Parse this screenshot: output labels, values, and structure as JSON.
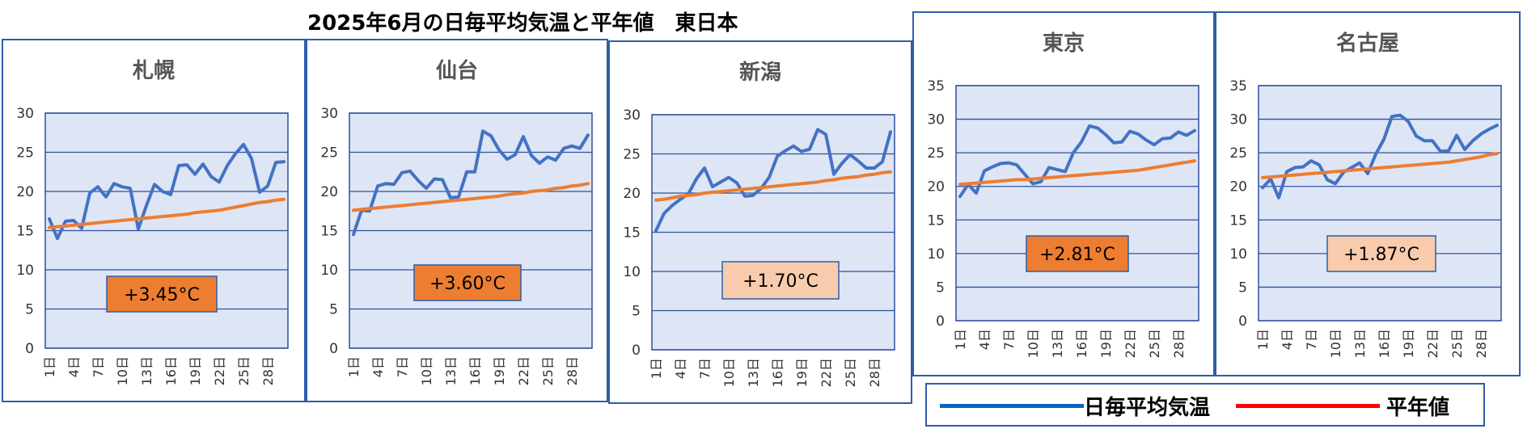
{
  "title": "2025年6月の日毎平均気温と平年値　東日本",
  "colors": {
    "daily": "#4472C4",
    "normal": "#ED7D31",
    "plot_bg": "#DEE6F5",
    "grid": "#2F4F9F",
    "border": "#2F5DAA",
    "legend_daily": "#0B63C4",
    "legend_normal": "#FF0000",
    "badge_strong": "#ED7D31",
    "badge_light": "#F8CBAD"
  },
  "legend": {
    "daily_label": "日毎平均気温",
    "normal_label": "平年値"
  },
  "chart_data": [
    {
      "type": "line",
      "title": "札幌",
      "xlabel": "",
      "ylabel": "",
      "x": [
        "1日",
        "2日",
        "3日",
        "4日",
        "5日",
        "6日",
        "7日",
        "8日",
        "9日",
        "10日",
        "11日",
        "12日",
        "13日",
        "14日",
        "15日",
        "16日",
        "17日",
        "18日",
        "19日",
        "20日",
        "21日",
        "22日",
        "23日",
        "24日",
        "25日",
        "26日",
        "27日",
        "28日",
        "29日",
        "30日"
      ],
      "xticks": [
        "1日",
        "4日",
        "7日",
        "10日",
        "13日",
        "16日",
        "19日",
        "22日",
        "25日",
        "28日"
      ],
      "ylim": [
        0,
        30
      ],
      "yticks": [
        0,
        5,
        10,
        15,
        20,
        25,
        30
      ],
      "series": [
        {
          "values": [
            16.5,
            14.0,
            16.2,
            16.3,
            15.3,
            19.8,
            20.6,
            19.3,
            21.0,
            20.6,
            20.4,
            15.2,
            18.2,
            20.9,
            20.0,
            19.6,
            23.3,
            23.4,
            22.2,
            23.5,
            21.9,
            21.2,
            23.3,
            24.8,
            26.0,
            24.2,
            19.9,
            20.7,
            23.7,
            23.8
          ]
        },
        {
          "values": [
            15.4,
            15.5,
            15.6,
            15.7,
            15.8,
            15.9,
            16.0,
            16.1,
            16.2,
            16.3,
            16.4,
            16.5,
            16.6,
            16.7,
            16.8,
            16.9,
            17.0,
            17.1,
            17.3,
            17.4,
            17.5,
            17.6,
            17.8,
            18.0,
            18.2,
            18.4,
            18.6,
            18.7,
            18.9,
            19.0
          ]
        }
      ],
      "annotation": "+3.45°C",
      "badge_level": "strong"
    },
    {
      "type": "line",
      "title": "仙台",
      "xlabel": "",
      "ylabel": "",
      "x": [
        "1日",
        "2日",
        "3日",
        "4日",
        "5日",
        "6日",
        "7日",
        "8日",
        "9日",
        "10日",
        "11日",
        "12日",
        "13日",
        "14日",
        "15日",
        "16日",
        "17日",
        "18日",
        "19日",
        "20日",
        "21日",
        "22日",
        "23日",
        "24日",
        "25日",
        "26日",
        "27日",
        "28日",
        "29日",
        "30日"
      ],
      "xticks": [
        "1日",
        "4日",
        "7日",
        "10日",
        "13日",
        "16日",
        "19日",
        "22日",
        "25日",
        "28日"
      ],
      "ylim": [
        0,
        30
      ],
      "yticks": [
        0,
        5,
        10,
        15,
        20,
        25,
        30
      ],
      "series": [
        {
          "values": [
            14.5,
            17.6,
            17.5,
            20.7,
            21.0,
            20.9,
            22.4,
            22.6,
            21.4,
            20.4,
            21.6,
            21.5,
            19.2,
            19.3,
            22.5,
            22.5,
            27.7,
            27.1,
            25.3,
            24.1,
            24.7,
            27.0,
            24.6,
            23.6,
            24.4,
            24.0,
            25.5,
            25.8,
            25.5,
            27.2
          ]
        },
        {
          "values": [
            17.6,
            17.7,
            17.8,
            17.9,
            18.0,
            18.1,
            18.2,
            18.3,
            18.4,
            18.5,
            18.6,
            18.7,
            18.8,
            18.9,
            19.0,
            19.1,
            19.2,
            19.3,
            19.4,
            19.6,
            19.7,
            19.8,
            20.0,
            20.1,
            20.2,
            20.4,
            20.5,
            20.7,
            20.8,
            21.0
          ]
        }
      ],
      "annotation": "+3.60°C",
      "badge_level": "strong"
    },
    {
      "type": "line",
      "title": "新潟",
      "xlabel": "",
      "ylabel": "",
      "x": [
        "1日",
        "2日",
        "3日",
        "4日",
        "5日",
        "6日",
        "7日",
        "8日",
        "9日",
        "10日",
        "11日",
        "12日",
        "13日",
        "14日",
        "15日",
        "16日",
        "17日",
        "18日",
        "19日",
        "20日",
        "21日",
        "22日",
        "23日",
        "24日",
        "25日",
        "26日",
        "27日",
        "28日",
        "29日",
        "30日"
      ],
      "xticks": [
        "1日",
        "4日",
        "7日",
        "10日",
        "13日",
        "16日",
        "19日",
        "22日",
        "25日",
        "28日"
      ],
      "ylim": [
        0,
        30
      ],
      "yticks": [
        0,
        5,
        10,
        15,
        20,
        25,
        30
      ],
      "series": [
        {
          "values": [
            15.2,
            17.4,
            18.4,
            19.2,
            19.9,
            21.8,
            23.2,
            20.8,
            21.4,
            22.0,
            21.3,
            19.6,
            19.7,
            20.6,
            22.0,
            24.7,
            25.4,
            26.0,
            25.3,
            25.6,
            28.1,
            27.5,
            22.4,
            23.8,
            24.9,
            24.1,
            23.2,
            23.2,
            24.0,
            27.8
          ]
        },
        {
          "values": [
            19.1,
            19.2,
            19.4,
            19.6,
            19.7,
            19.8,
            20.0,
            20.1,
            20.2,
            20.3,
            20.4,
            20.5,
            20.6,
            20.7,
            20.8,
            20.9,
            21.0,
            21.1,
            21.2,
            21.3,
            21.4,
            21.6,
            21.7,
            21.9,
            22.0,
            22.1,
            22.3,
            22.4,
            22.6,
            22.7
          ]
        }
      ],
      "annotation": "+1.70°C",
      "badge_level": "light"
    },
    {
      "type": "line",
      "title": "東京",
      "xlabel": "",
      "ylabel": "",
      "x": [
        "1日",
        "2日",
        "3日",
        "4日",
        "5日",
        "6日",
        "7日",
        "8日",
        "9日",
        "10日",
        "11日",
        "12日",
        "13日",
        "14日",
        "15日",
        "16日",
        "17日",
        "18日",
        "19日",
        "20日",
        "21日",
        "22日",
        "23日",
        "24日",
        "25日",
        "26日",
        "27日",
        "28日",
        "29日",
        "30日"
      ],
      "xticks": [
        "1日",
        "4日",
        "7日",
        "10日",
        "13日",
        "16日",
        "19日",
        "22日",
        "25日",
        "28日"
      ],
      "ylim": [
        0,
        35
      ],
      "yticks": [
        0,
        5,
        10,
        15,
        20,
        25,
        30,
        35
      ],
      "series": [
        {
          "values": [
            18.5,
            20.3,
            19.0,
            22.3,
            22.9,
            23.4,
            23.5,
            23.2,
            21.8,
            20.4,
            20.7,
            22.8,
            22.5,
            22.2,
            25.0,
            26.6,
            29.0,
            28.7,
            27.7,
            26.5,
            26.6,
            28.2,
            27.8,
            26.9,
            26.2,
            27.1,
            27.2,
            28.1,
            27.6,
            28.3
          ]
        },
        {
          "values": [
            20.3,
            20.4,
            20.5,
            20.6,
            20.7,
            20.8,
            20.9,
            21.0,
            21.0,
            21.1,
            21.2,
            21.3,
            21.4,
            21.5,
            21.6,
            21.7,
            21.8,
            21.9,
            22.0,
            22.1,
            22.2,
            22.3,
            22.4,
            22.6,
            22.8,
            23.0,
            23.2,
            23.4,
            23.6,
            23.8
          ]
        }
      ],
      "annotation": "+2.81°C",
      "badge_level": "strong"
    },
    {
      "type": "line",
      "title": "名古屋",
      "xlabel": "",
      "ylabel": "",
      "x": [
        "1日",
        "2日",
        "3日",
        "4日",
        "5日",
        "6日",
        "7日",
        "8日",
        "9日",
        "10日",
        "11日",
        "12日",
        "13日",
        "14日",
        "15日",
        "16日",
        "17日",
        "18日",
        "19日",
        "20日",
        "21日",
        "22日",
        "23日",
        "24日",
        "25日",
        "26日",
        "27日",
        "28日",
        "29日",
        "30日"
      ],
      "xticks": [
        "1日",
        "4日",
        "7日",
        "10日",
        "13日",
        "16日",
        "19日",
        "22日",
        "25日",
        "28日"
      ],
      "ylim": [
        0,
        35
      ],
      "yticks": [
        0,
        5,
        10,
        15,
        20,
        25,
        30,
        35
      ],
      "series": [
        {
          "values": [
            19.8,
            21.1,
            18.3,
            22.2,
            22.8,
            22.9,
            23.8,
            23.2,
            21.0,
            20.4,
            22.1,
            22.8,
            23.5,
            21.9,
            24.8,
            27.0,
            30.4,
            30.6,
            29.7,
            27.5,
            26.8,
            26.8,
            25.2,
            25.3,
            27.6,
            25.5,
            26.8,
            27.8,
            28.5,
            29.1
          ]
        },
        {
          "values": [
            21.3,
            21.4,
            21.5,
            21.6,
            21.7,
            21.8,
            21.9,
            22.0,
            22.1,
            22.2,
            22.3,
            22.4,
            22.5,
            22.6,
            22.7,
            22.8,
            22.9,
            23.0,
            23.1,
            23.2,
            23.3,
            23.4,
            23.5,
            23.6,
            23.8,
            24.0,
            24.2,
            24.4,
            24.7,
            24.9
          ]
        }
      ],
      "annotation": "+1.87°C",
      "badge_level": "light"
    }
  ]
}
